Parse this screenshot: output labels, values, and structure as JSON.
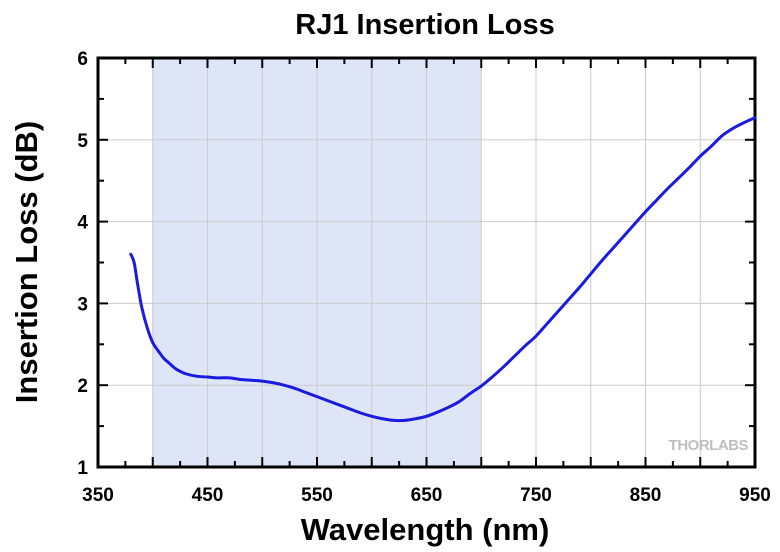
{
  "chart_data": {
    "type": "line",
    "title": "RJ1 Insertion Loss",
    "xlabel": "Wavelength (nm)",
    "ylabel": "Insertion Loss (dB)",
    "xlim": [
      350,
      950
    ],
    "ylim": [
      1,
      6
    ],
    "x_ticks": [
      "350",
      "450",
      "550",
      "650",
      "750",
      "850",
      "950"
    ],
    "y_ticks": [
      "1",
      "2",
      "3",
      "4",
      "5",
      "6"
    ],
    "grid": true,
    "shaded_region": {
      "x_start": 400,
      "x_end": 700,
      "color": "#dde5f6"
    },
    "series": [
      {
        "color": "#1a1ae0",
        "points": [
          [
            380,
            3.6
          ],
          [
            383,
            3.5
          ],
          [
            386,
            3.25
          ],
          [
            390,
            2.95
          ],
          [
            395,
            2.7
          ],
          [
            400,
            2.52
          ],
          [
            405,
            2.42
          ],
          [
            410,
            2.33
          ],
          [
            415,
            2.27
          ],
          [
            420,
            2.21
          ],
          [
            425,
            2.17
          ],
          [
            430,
            2.14
          ],
          [
            440,
            2.11
          ],
          [
            450,
            2.1
          ],
          [
            460,
            2.09
          ],
          [
            470,
            2.09
          ],
          [
            480,
            2.07
          ],
          [
            490,
            2.06
          ],
          [
            500,
            2.05
          ],
          [
            510,
            2.03
          ],
          [
            520,
            2.0
          ],
          [
            530,
            1.96
          ],
          [
            540,
            1.91
          ],
          [
            550,
            1.86
          ],
          [
            560,
            1.81
          ],
          [
            570,
            1.76
          ],
          [
            580,
            1.71
          ],
          [
            590,
            1.66
          ],
          [
            600,
            1.62
          ],
          [
            610,
            1.59
          ],
          [
            620,
            1.57
          ],
          [
            630,
            1.57
          ],
          [
            640,
            1.59
          ],
          [
            650,
            1.62
          ],
          [
            660,
            1.67
          ],
          [
            670,
            1.73
          ],
          [
            680,
            1.8
          ],
          [
            690,
            1.9
          ],
          [
            700,
            1.99
          ],
          [
            710,
            2.1
          ],
          [
            720,
            2.22
          ],
          [
            730,
            2.35
          ],
          [
            740,
            2.48
          ],
          [
            750,
            2.6
          ],
          [
            760,
            2.75
          ],
          [
            770,
            2.9
          ],
          [
            780,
            3.05
          ],
          [
            790,
            3.2
          ],
          [
            800,
            3.36
          ],
          [
            810,
            3.52
          ],
          [
            820,
            3.67
          ],
          [
            830,
            3.82
          ],
          [
            840,
            3.97
          ],
          [
            850,
            4.12
          ],
          [
            860,
            4.26
          ],
          [
            870,
            4.4
          ],
          [
            880,
            4.53
          ],
          [
            890,
            4.66
          ],
          [
            900,
            4.8
          ],
          [
            910,
            4.92
          ],
          [
            920,
            5.05
          ],
          [
            930,
            5.14
          ],
          [
            940,
            5.21
          ],
          [
            950,
            5.27
          ]
        ]
      }
    ]
  },
  "watermark": {
    "part1": "THOR",
    "part2": "LABS"
  }
}
